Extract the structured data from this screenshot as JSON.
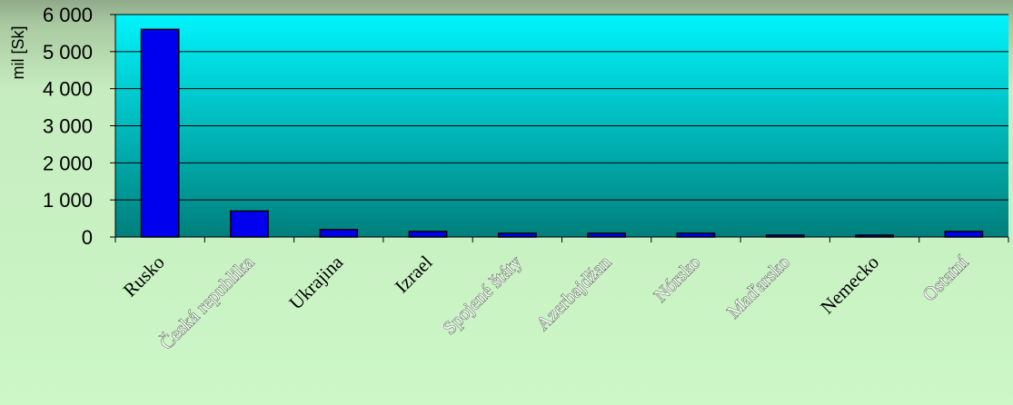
{
  "chart_data": {
    "type": "bar",
    "ylabel": "mil [Sk]",
    "ylim": [
      0,
      6000
    ],
    "yticks": [
      0,
      1000,
      2000,
      3000,
      4000,
      5000,
      6000
    ],
    "ytick_labels": [
      "0",
      "1 000",
      "2 000",
      "3 000",
      "4 000",
      "5 000",
      "6 000"
    ],
    "categories": [
      "Rusko",
      "Česká republika",
      "Ukrajina",
      "Izrael",
      "Spojené štáty",
      "Azerbajdžan",
      "Nórsko",
      "Maďarsko",
      "Nemecko",
      "Ostatní"
    ],
    "values": [
      5600,
      700,
      200,
      150,
      100,
      100,
      100,
      50,
      50,
      150
    ],
    "grid": true,
    "legend": "none",
    "colors": {
      "bar": "#0000ee",
      "bar_edge": "#000000",
      "plot_top": "#00f4fc",
      "plot_bottom": "#008080",
      "grid": "#000000"
    }
  }
}
